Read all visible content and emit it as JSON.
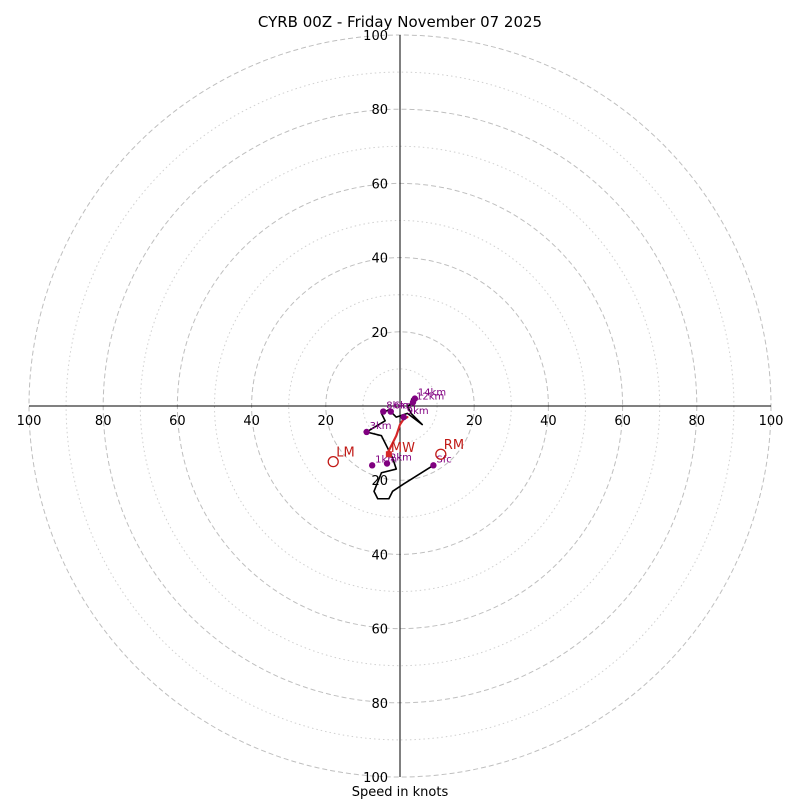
{
  "chart_data": {
    "type": "hodograph",
    "title": "CYRB 00Z - Friday November 07 2025",
    "xlabel": "Speed in knots",
    "units": "knots",
    "max_speed": 100,
    "rings_dashed": [
      20,
      40,
      60,
      80,
      100
    ],
    "rings_dotted": [
      10,
      30,
      50,
      70,
      90
    ],
    "axis_tick_labels": {
      "x_left": [
        "100",
        "80",
        "60",
        "40",
        "20"
      ],
      "x_right": [
        "20",
        "40",
        "60",
        "80",
        "100"
      ],
      "y_up": [
        "20",
        "40",
        "60",
        "80",
        "100"
      ],
      "y_down": [
        "20",
        "40",
        "60",
        "80",
        "100"
      ]
    },
    "hodograph_trace": [
      [
        9,
        -16
      ],
      [
        1,
        -21
      ],
      [
        -2,
        -23
      ],
      [
        -3,
        -25
      ],
      [
        -6,
        -25
      ],
      [
        -7,
        -23
      ],
      [
        -5,
        -18
      ],
      [
        -1,
        -17
      ],
      [
        -2,
        -14
      ],
      [
        -4,
        -10
      ],
      [
        -5,
        -8
      ],
      [
        -9,
        -7
      ],
      [
        -4,
        -4
      ],
      [
        -5,
        -2
      ],
      [
        -3,
        -1
      ],
      [
        -2,
        -2
      ],
      [
        -1,
        -3
      ],
      [
        2,
        -2
      ],
      [
        6,
        -5
      ],
      [
        3,
        -2
      ],
      [
        2,
        0
      ],
      [
        4,
        1
      ],
      [
        3,
        2
      ]
    ],
    "height_markers": [
      {
        "label": "Sfc",
        "u": 9,
        "v": -16
      },
      {
        "label": "1km",
        "u": -7.5,
        "v": -16
      },
      {
        "label": "2km",
        "u": -3.5,
        "v": -15.5
      },
      {
        "label": "3km",
        "u": -9,
        "v": -7
      },
      {
        "label": "6km",
        "u": -2.5,
        "v": -1.5
      },
      {
        "label": "9km",
        "u": 1,
        "v": -3
      },
      {
        "label": "8km",
        "u": -4.5,
        "v": -1.5
      },
      {
        "label": "12km",
        "u": 3.5,
        "v": 1
      },
      {
        "label": "14km",
        "u": 4,
        "v": 2
      }
    ],
    "mean_wind_line": [
      [
        -3.5,
        -13
      ],
      [
        -1,
        -8
      ],
      [
        0,
        -5
      ],
      [
        1,
        -3.5
      ],
      [
        2,
        -3
      ]
    ],
    "storm_motions": [
      {
        "label": "RM",
        "u": 11,
        "v": -13
      },
      {
        "label": "LM",
        "u": -18,
        "v": -15
      },
      {
        "label": "MW",
        "u": -3,
        "v": -13
      }
    ],
    "colors": {
      "trace": "#000000",
      "height_marker": "#800080",
      "storm_motion": "#c11b17",
      "mean_wind": "#d62728",
      "grid": "#bfbfbf"
    }
  }
}
